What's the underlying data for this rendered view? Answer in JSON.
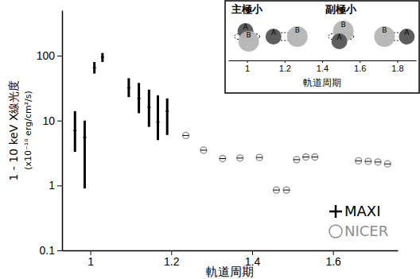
{
  "chart_data": {
    "type": "scatter",
    "xlabel": "軌道周期",
    "ylabel": [
      "1 - 10 keV X線光度",
      "(x10⁻¹⁰ erg/cm²/s)"
    ],
    "log": "y",
    "grid": false,
    "legend": "lower right",
    "xlim": [
      0.93,
      1.76
    ],
    "ylim": [
      0.1,
      500
    ],
    "xticks": [
      1,
      1.2,
      1.4,
      1.6
    ],
    "yticks": [
      0.1,
      1,
      10,
      100
    ],
    "series": [
      {
        "name": "MAXI",
        "color": "#000000",
        "marker": "plus",
        "x": [
          0.962,
          0.986,
          1.01,
          1.03,
          1.095,
          1.12,
          1.145,
          1.167,
          1.19
        ],
        "values": [
          7,
          5.5,
          65,
          95,
          32,
          22,
          16,
          9.5,
          14
        ],
        "error_minus": [
          3.7,
          4.6,
          12,
          15,
          9,
          9,
          8,
          4.5,
          8
        ],
        "error_plus": [
          7,
          4.5,
          15,
          15,
          13,
          16,
          14,
          15,
          8
        ]
      },
      {
        "name": "NICER",
        "color": "#8c8c8c",
        "marker": "circle",
        "x": [
          1.236,
          1.28,
          1.327,
          1.37,
          1.418,
          1.46,
          1.485,
          1.51,
          1.533,
          1.555,
          1.663,
          1.687,
          1.711,
          1.735
        ],
        "values": [
          5.9,
          3.5,
          2.6,
          2.65,
          2.7,
          0.85,
          0.85,
          2.5,
          2.75,
          2.75,
          2.4,
          2.35,
          2.3,
          2.15
        ]
      }
    ]
  },
  "inset": {
    "xlabel": "軌道周期",
    "xlim": [
      0.9,
      1.9
    ],
    "xticks": [
      1,
      1.2,
      1.4,
      1.6,
      1.8
    ],
    "phases": [
      1,
      1.2,
      1.5,
      1.8
    ],
    "annotations": [
      {
        "text": "主極小",
        "x": 1
      },
      {
        "text": "副極小",
        "x": 1.5
      }
    ],
    "stars": [
      "A",
      "B"
    ]
  }
}
